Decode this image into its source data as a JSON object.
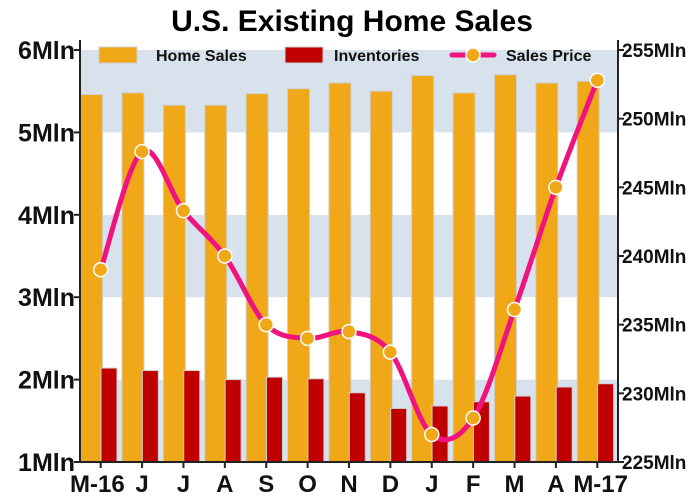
{
  "chart_data": {
    "type": "bar",
    "title": "U.S. Existing Home Sales",
    "categories": [
      "M-16",
      "J",
      "J",
      "A",
      "S",
      "O",
      "N",
      "D",
      "J",
      "F",
      "M",
      "A",
      "M-17"
    ],
    "series": [
      {
        "name": "Home Sales",
        "type": "bar",
        "axis": "left",
        "color": "#f0a818",
        "values": [
          5.46,
          5.48,
          5.33,
          5.33,
          5.47,
          5.53,
          5.6,
          5.5,
          5.69,
          5.48,
          5.7,
          5.6,
          5.62
        ]
      },
      {
        "name": "Inventories",
        "type": "bar",
        "axis": "left",
        "color": "#c00000",
        "values": [
          2.14,
          2.11,
          2.11,
          2.0,
          2.03,
          2.01,
          1.84,
          1.65,
          1.68,
          1.73,
          1.8,
          1.91,
          1.95
        ]
      },
      {
        "name": "Sales Price",
        "type": "line",
        "axis": "right",
        "color": "#f0127e",
        "marker_color": "#f0a818",
        "values": [
          239.0,
          247.6,
          243.3,
          240.0,
          235.0,
          234.0,
          234.5,
          233.0,
          227.0,
          228.2,
          236.1,
          245.0,
          252.8
        ]
      }
    ],
    "left_axis": {
      "min": 1,
      "max": 6,
      "ticks": [
        "1Mln",
        "2Mln",
        "3Mln",
        "4Mln",
        "5Mln",
        "6Mln"
      ]
    },
    "right_axis": {
      "min": 225,
      "max": 255,
      "ticks": [
        "225Mln",
        "230Mln",
        "235Mln",
        "240Mln",
        "245Mln",
        "250Mln",
        "255Mln"
      ]
    },
    "background_bands": [
      "#d8e2ed",
      "#ffffff"
    ],
    "legend": "top"
  }
}
